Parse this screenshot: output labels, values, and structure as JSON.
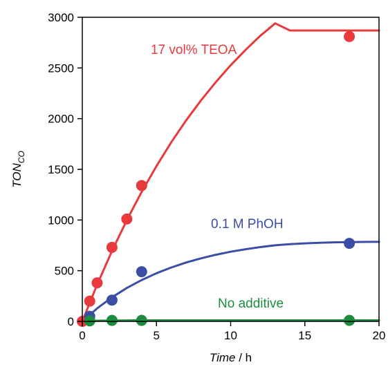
{
  "chart_data": {
    "type": "scatter",
    "xlabel": {
      "italic": "Time",
      "rest": " / h"
    },
    "ylabel": {
      "main": "TON",
      "sub": "CO"
    },
    "xlim": [
      0,
      20
    ],
    "ylim": [
      0,
      3000
    ],
    "x_ticks": [
      0,
      5,
      10,
      15,
      20
    ],
    "y_ticks": [
      0,
      500,
      1000,
      1500,
      2000,
      2500,
      3000
    ],
    "grid": false,
    "series": [
      {
        "name": "17 vol% TEOA",
        "color": "#e8393c",
        "points": [
          [
            0,
            0
          ],
          [
            0.5,
            200
          ],
          [
            1,
            380
          ],
          [
            2,
            730
          ],
          [
            3,
            1010
          ],
          [
            4,
            1340
          ],
          [
            18,
            2810
          ]
        ],
        "fit": [
          [
            0,
            0
          ],
          [
            1,
            362
          ],
          [
            2,
            694
          ],
          [
            3,
            998
          ],
          [
            4,
            1277
          ],
          [
            5,
            1533
          ],
          [
            6,
            1768
          ],
          [
            7,
            1983
          ],
          [
            8,
            2180
          ],
          [
            9,
            2361
          ],
          [
            10,
            2527
          ],
          [
            11,
            2678
          ],
          [
            12,
            2818
          ],
          [
            13,
            2940
          ],
          [
            14,
            2870
          ],
          [
            15,
            2870
          ],
          [
            16,
            2870
          ],
          [
            17,
            2870
          ],
          [
            18,
            2870
          ],
          [
            19,
            2870
          ],
          [
            20,
            2870
          ]
        ]
      },
      {
        "name": "0.1 M PhOH",
        "color": "#3b4ea3",
        "points": [
          [
            0.5,
            50
          ],
          [
            2,
            210
          ],
          [
            4,
            490
          ],
          [
            18,
            770
          ]
        ],
        "fit": [
          [
            0,
            0
          ],
          [
            1,
            128
          ],
          [
            2,
            237
          ],
          [
            3,
            329
          ],
          [
            4,
            408
          ],
          [
            5,
            475
          ],
          [
            6,
            532
          ],
          [
            7,
            581
          ],
          [
            8,
            622
          ],
          [
            9,
            657
          ],
          [
            10,
            687
          ],
          [
            11,
            712
          ],
          [
            12,
            733
          ],
          [
            13,
            751
          ],
          [
            14,
            762
          ],
          [
            15,
            770
          ],
          [
            16,
            776
          ],
          [
            17,
            780
          ],
          [
            18,
            782
          ],
          [
            19,
            784
          ],
          [
            20,
            785
          ]
        ]
      },
      {
        "name": "No additive",
        "color": "#1e8c3e",
        "points": [
          [
            0.5,
            5
          ],
          [
            2,
            10
          ],
          [
            4,
            10
          ],
          [
            18,
            10
          ]
        ],
        "fit": [
          [
            0,
            0
          ],
          [
            1,
            7
          ],
          [
            2,
            9
          ],
          [
            4,
            10
          ],
          [
            10,
            10
          ],
          [
            20,
            10
          ]
        ]
      }
    ]
  }
}
